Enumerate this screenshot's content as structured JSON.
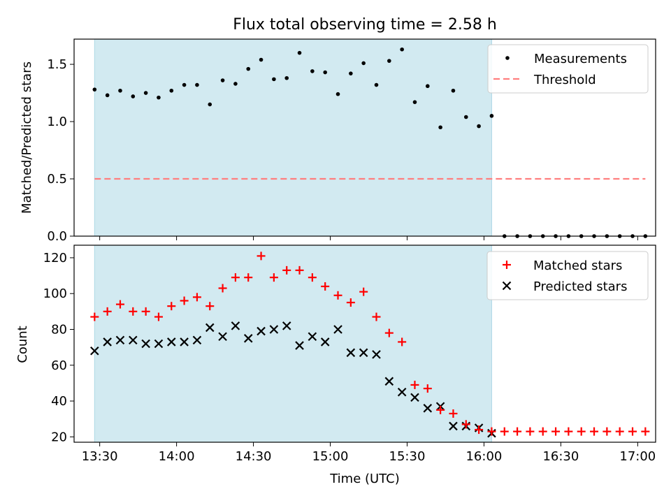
{
  "figure": {
    "title": "Flux total observing time = 2.58 h"
  },
  "colors": {
    "shade": "#add8e6",
    "threshold": "#ff7f7f",
    "matched": "#ff0000",
    "predicted": "#000000",
    "measurements": "#000000"
  },
  "chart_data": [
    {
      "type": "scatter",
      "ylabel": "Matched/Predicted stars",
      "xlabel": "",
      "ylim": [
        0,
        1.72
      ],
      "yticks": [
        "0.0",
        "0.5",
        "1.0",
        "1.5"
      ],
      "ytick_values": [
        0,
        0.5,
        1.0,
        1.5
      ],
      "shaded_interval": [
        "13:28",
        "16:03"
      ],
      "legend_position": "upper right",
      "series": [
        {
          "name": "Measurements",
          "marker": "dot",
          "x": [
            "13:28",
            "13:33",
            "13:38",
            "13:43",
            "13:48",
            "13:53",
            "13:58",
            "14:03",
            "14:08",
            "14:13",
            "14:18",
            "14:23",
            "14:28",
            "14:33",
            "14:38",
            "14:43",
            "14:48",
            "14:53",
            "14:58",
            "15:03",
            "15:08",
            "15:13",
            "15:18",
            "15:23",
            "15:28",
            "15:33",
            "15:38",
            "15:43",
            "15:48",
            "15:53",
            "15:58",
            "16:03",
            "16:08",
            "16:13",
            "16:18",
            "16:23",
            "16:28",
            "16:33",
            "16:38",
            "16:43",
            "16:48",
            "16:53",
            "16:58",
            "17:03"
          ],
          "y": [
            1.28,
            1.23,
            1.27,
            1.22,
            1.25,
            1.21,
            1.27,
            1.32,
            1.32,
            1.15,
            1.36,
            1.33,
            1.46,
            1.54,
            1.37,
            1.38,
            1.6,
            1.44,
            1.43,
            1.24,
            1.42,
            1.51,
            1.32,
            1.53,
            1.63,
            1.17,
            1.31,
            0.95,
            1.27,
            1.04,
            0.96,
            1.05,
            0,
            0,
            0,
            0,
            0,
            0,
            0,
            0,
            0,
            0,
            0,
            0
          ]
        },
        {
          "name": "Threshold",
          "style": "dashed",
          "x": [
            "13:28",
            "17:03"
          ],
          "y": [
            0.5,
            0.5
          ]
        }
      ]
    },
    {
      "type": "scatter",
      "ylabel": "Count",
      "xlabel": "Time (UTC)",
      "ylim": [
        17,
        127
      ],
      "yticks": [
        "20",
        "40",
        "60",
        "80",
        "100",
        "120"
      ],
      "ytick_values": [
        20,
        40,
        60,
        80,
        100,
        120
      ],
      "xticks": [
        "13:30",
        "14:00",
        "14:30",
        "15:00",
        "15:30",
        "16:00",
        "16:30",
        "17:00"
      ],
      "xlim": [
        "13:20",
        "17:07"
      ],
      "shaded_interval": [
        "13:28",
        "16:03"
      ],
      "legend_position": "upper right",
      "series": [
        {
          "name": "Matched stars",
          "marker": "plus",
          "x": [
            "13:28",
            "13:33",
            "13:38",
            "13:43",
            "13:48",
            "13:53",
            "13:58",
            "14:03",
            "14:08",
            "14:13",
            "14:18",
            "14:23",
            "14:28",
            "14:33",
            "14:38",
            "14:43",
            "14:48",
            "14:53",
            "14:58",
            "15:03",
            "15:08",
            "15:13",
            "15:18",
            "15:23",
            "15:28",
            "15:33",
            "15:38",
            "15:43",
            "15:48",
            "15:53",
            "15:58",
            "16:03",
            "16:08",
            "16:13",
            "16:18",
            "16:23",
            "16:28",
            "16:33",
            "16:38",
            "16:43",
            "16:48",
            "16:53",
            "16:58",
            "17:03"
          ],
          "y": [
            87,
            90,
            94,
            90,
            90,
            87,
            93,
            96,
            98,
            93,
            103,
            109,
            109,
            121,
            109,
            113,
            113,
            109,
            104,
            99,
            95,
            101,
            87,
            78,
            73,
            49,
            47,
            35,
            33,
            27,
            24,
            23,
            23,
            23,
            23,
            23,
            23,
            23,
            23,
            23,
            23,
            23,
            23,
            23
          ]
        },
        {
          "name": "Predicted stars",
          "marker": "x",
          "x": [
            "13:28",
            "13:33",
            "13:38",
            "13:43",
            "13:48",
            "13:53",
            "13:58",
            "14:03",
            "14:08",
            "14:13",
            "14:18",
            "14:23",
            "14:28",
            "14:33",
            "14:38",
            "14:43",
            "14:48",
            "14:53",
            "14:58",
            "15:03",
            "15:08",
            "15:13",
            "15:18",
            "15:23",
            "15:28",
            "15:33",
            "15:38",
            "15:43",
            "15:48",
            "15:53",
            "15:58",
            "16:03"
          ],
          "y": [
            68,
            73,
            74,
            74,
            72,
            72,
            73,
            73,
            74,
            81,
            76,
            82,
            75,
            79,
            80,
            82,
            71,
            76,
            73,
            80,
            67,
            67,
            66,
            51,
            45,
            42,
            36,
            37,
            26,
            26,
            25,
            22
          ]
        }
      ]
    }
  ]
}
